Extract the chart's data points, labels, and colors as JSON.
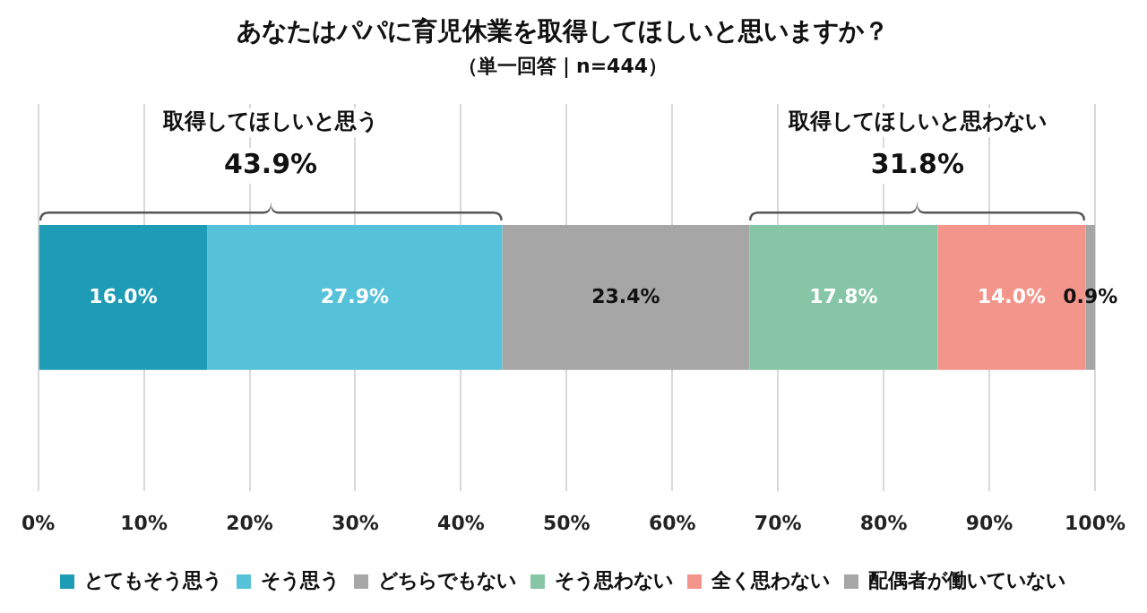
{
  "chart_data": {
    "type": "bar",
    "orientation": "horizontal",
    "stacked": true,
    "title": "あなたはパパに育児休業を取得してほしいと思いますか？",
    "subtitle": "（単一回答｜n=444）",
    "categories": [
      null
    ],
    "series": [
      {
        "name": "とてもそう思う",
        "color": "#1e9bb5",
        "values": [
          16.0
        ],
        "value_labels": [
          "16.0%"
        ]
      },
      {
        "name": "そう思う",
        "color": "#56c2d9",
        "values": [
          27.9
        ],
        "value_labels": [
          "27.9%"
        ]
      },
      {
        "name": "どちらでもない",
        "color": "#a6a6a6",
        "values": [
          23.4
        ],
        "value_labels": [
          "23.4%"
        ]
      },
      {
        "name": "そう思わない",
        "color": "#86c5a6",
        "values": [
          17.8
        ],
        "value_labels": [
          "17.8%"
        ]
      },
      {
        "name": "全く思わない",
        "color": "#f4958b",
        "values": [
          14.0
        ],
        "value_labels": [
          "14.0%"
        ]
      },
      {
        "name": "配偶者が働いていない",
        "color": "#a6a6a6",
        "values": [
          0.9
        ],
        "value_labels": [
          "0.9%"
        ]
      }
    ],
    "xlim": [
      0,
      100
    ],
    "xticks": [
      {
        "value": 0,
        "label": "0%"
      },
      {
        "value": 10,
        "label": "10%"
      },
      {
        "value": 20,
        "label": "20%"
      },
      {
        "value": 30,
        "label": "30%"
      },
      {
        "value": 40,
        "label": "40%"
      },
      {
        "value": 50,
        "label": "50%"
      },
      {
        "value": 60,
        "label": "60%"
      },
      {
        "value": 70,
        "label": "70%"
      },
      {
        "value": 80,
        "label": "80%"
      },
      {
        "value": 90,
        "label": "90%"
      },
      {
        "value": 100,
        "label": "100%"
      }
    ],
    "annotations": [
      "取得してほしいと思う",
      "43.9%",
      "取得してほしいと思わない",
      "31.8%"
    ],
    "grid": "x",
    "tick_labels": "x",
    "legend": "bottom"
  }
}
